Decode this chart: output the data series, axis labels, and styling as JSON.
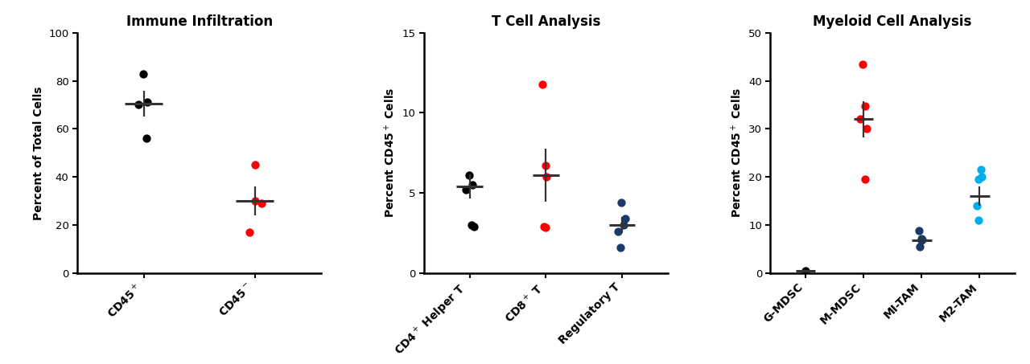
{
  "panel1": {
    "title": "Immune Infiltration",
    "ylabel": "Percent of Total Cells",
    "ylim": [
      0,
      100
    ],
    "yticks": [
      0,
      20,
      40,
      60,
      80,
      100
    ],
    "categories": [
      "CD45$^+$",
      "CD45$^-$"
    ],
    "groups": [
      {
        "points": [
          70.0,
          71.0,
          83.0,
          56.0
        ],
        "mean": 70.5,
        "sem": 5.5,
        "color": "#000000"
      },
      {
        "points": [
          29.0,
          30.0,
          45.0,
          17.0
        ],
        "mean": 30.0,
        "sem": 6.0,
        "color": "#ff0000"
      }
    ]
  },
  "panel2": {
    "title": "T Cell Analysis",
    "ylabel": "Percent CD45$^+$ Cells",
    "ylim": [
      0,
      15
    ],
    "yticks": [
      0,
      5,
      10,
      15
    ],
    "categories": [
      "CD4$^+$ Helper T",
      "CD8$^+$ T",
      "Regulatory T"
    ],
    "groups": [
      {
        "points": [
          5.2,
          5.5,
          6.1,
          3.0,
          2.9
        ],
        "mean": 5.4,
        "sem": 0.75,
        "color": "#000000"
      },
      {
        "points": [
          6.0,
          6.7,
          11.8,
          2.9,
          2.85
        ],
        "mean": 6.1,
        "sem": 1.65,
        "color": "#ff0000"
      },
      {
        "points": [
          3.0,
          3.4,
          4.4,
          2.6,
          1.6
        ],
        "mean": 3.0,
        "sem": 0.5,
        "color": "#1a3a6b"
      }
    ]
  },
  "panel3": {
    "title": "Myeloid Cell Analysis",
    "ylabel": "Percent CD45$^+$ Cells",
    "ylim": [
      0,
      50
    ],
    "yticks": [
      0,
      10,
      20,
      30,
      40,
      50
    ],
    "categories": [
      "G-MDSC",
      "M-MDSC",
      "MI-TAM",
      "M2-TAM"
    ],
    "groups": [
      {
        "points": [
          0.5
        ],
        "mean": 0.5,
        "sem": 0.0,
        "color": "#000000"
      },
      {
        "points": [
          32.0,
          34.8,
          43.5,
          19.5,
          30.0
        ],
        "mean": 32.0,
        "sem": 3.8,
        "color": "#ff0000"
      },
      {
        "points": [
          7.0,
          7.2,
          8.8,
          5.5,
          6.8
        ],
        "mean": 6.8,
        "sem": 0.55,
        "color": "#1a3a6b"
      },
      {
        "points": [
          21.5,
          20.0,
          19.5,
          14.0,
          11.0
        ],
        "mean": 16.0,
        "sem": 2.0,
        "color": "#00aeef"
      }
    ]
  }
}
